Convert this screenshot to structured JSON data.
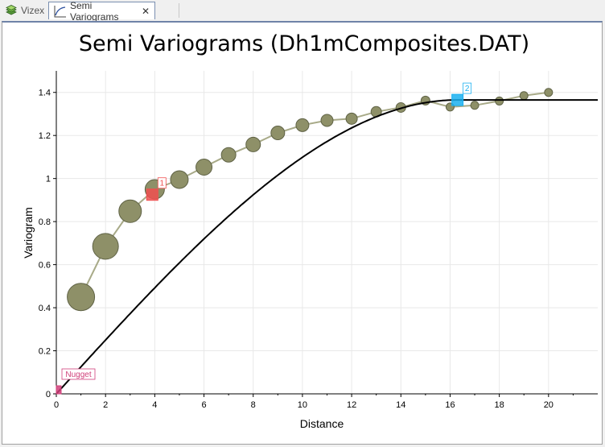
{
  "tabs": [
    {
      "label": "Vizex",
      "icon": "layers-icon"
    },
    {
      "label": "Semi Variograms",
      "icon": "variogram-chart-icon",
      "close": "✕"
    }
  ],
  "chart_data": {
    "type": "scatter",
    "title": "Semi Variograms (Dh1mComposites.DAT)",
    "xlabel": "Distance",
    "ylabel": "Variogram",
    "xlim": [
      0,
      22
    ],
    "ylim": [
      0,
      1.5
    ],
    "xticks": [
      0,
      2,
      4,
      6,
      8,
      10,
      12,
      14,
      16,
      18,
      20
    ],
    "yticks": [
      0,
      0.2,
      0.4,
      0.6,
      0.8,
      1,
      1.2,
      1.4
    ],
    "grid": true,
    "series": [
      {
        "kind": "experimental",
        "color": "#8e9068",
        "x": [
          1,
          2,
          3,
          4,
          5,
          6,
          7,
          8,
          9,
          10,
          11,
          12,
          13,
          14,
          15,
          16,
          17,
          18,
          19,
          20
        ],
        "y": [
          0.45,
          0.685,
          0.848,
          0.95,
          0.995,
          1.053,
          1.11,
          1.158,
          1.212,
          1.248,
          1.27,
          1.278,
          1.31,
          1.33,
          1.362,
          1.332,
          1.34,
          1.36,
          1.385,
          1.4
        ],
        "weight": [
          17,
          16,
          14,
          12,
          11,
          10,
          9,
          9,
          8.5,
          8,
          7.5,
          7,
          6.5,
          6,
          5.5,
          5,
          5,
          5,
          5,
          5
        ]
      },
      {
        "kind": "model",
        "color": "#000000",
        "nugget": 0.0,
        "range": 16.3,
        "sill": 1.365
      }
    ],
    "markers": [
      {
        "label": "Nugget",
        "x": 0.0,
        "y": 0.0,
        "color": "#d0407a"
      },
      {
        "label": "1",
        "x": 3.9,
        "y": 0.925,
        "color": "#f05050"
      },
      {
        "label": "2",
        "x": 16.3,
        "y": 1.365,
        "color": "#1ab0f0"
      }
    ]
  }
}
